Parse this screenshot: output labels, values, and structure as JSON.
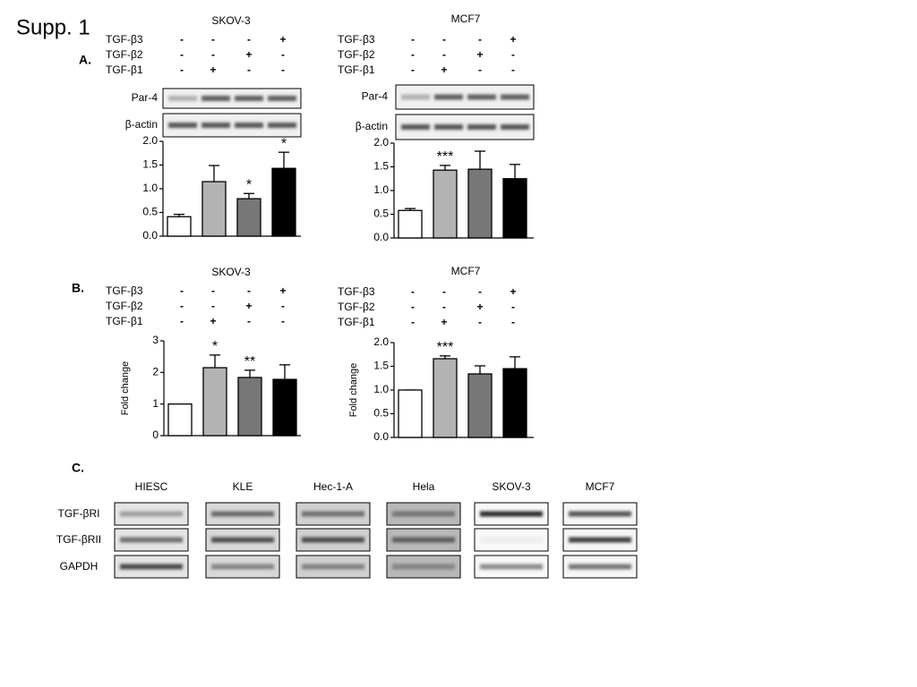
{
  "title": "Supp. 1",
  "panel_labels": [
    "A.",
    "B.",
    "C."
  ],
  "chart_data": [
    {
      "type": "bar",
      "title": "SKOV-3",
      "treatments": [
        {
          "label": "TGF-β3",
          "signs": [
            "-",
            "-",
            "-",
            "+"
          ]
        },
        {
          "label": "TGF-β2",
          "signs": [
            "-",
            "-",
            "+",
            "-"
          ]
        },
        {
          "label": "TGF-β1",
          "signs": [
            "-",
            "+",
            "-",
            "-"
          ]
        }
      ],
      "blots": [
        "Par-4",
        "β-actin"
      ],
      "categories": [
        null,
        null,
        null,
        null
      ],
      "values": [
        0.41,
        1.15,
        0.79,
        1.43
      ],
      "errors": [
        0.05,
        0.34,
        0.11,
        0.34
      ],
      "annotations": [
        null,
        null,
        "*",
        "*"
      ],
      "colors": [
        "#ffffff",
        "#b3b3b3",
        "#777777",
        "#000000"
      ],
      "ylim": [
        0,
        2
      ],
      "yticks": [
        {
          "value": 0,
          "label": "0.0"
        },
        0.5,
        {
          "value": 1,
          "label": "1.0"
        },
        1.5,
        {
          "value": 2,
          "label": "2.0"
        }
      ]
    },
    {
      "type": "bar",
      "title": "MCF7",
      "treatments": [
        {
          "label": "TGF-β3",
          "signs": [
            "-",
            "-",
            "-",
            "+"
          ]
        },
        {
          "label": "TGF-β2",
          "signs": [
            "-",
            "-",
            "+",
            "-"
          ]
        },
        {
          "label": "TGF-β1",
          "signs": [
            "-",
            "+",
            "-",
            "-"
          ]
        }
      ],
      "blots": [
        "Par-4",
        "β-actin"
      ],
      "categories": [
        null,
        null,
        null,
        null
      ],
      "values": [
        0.58,
        1.43,
        1.45,
        1.25
      ],
      "errors": [
        0.04,
        0.1,
        0.38,
        0.3
      ],
      "annotations": [
        null,
        "***",
        null,
        null
      ],
      "colors": [
        "#ffffff",
        "#b3b3b3",
        "#777777",
        "#000000"
      ],
      "ylim": [
        0,
        2
      ],
      "yticks": [
        {
          "value": 0,
          "label": "0.0"
        },
        0.5,
        {
          "value": 1,
          "label": "1.0"
        },
        1.5,
        {
          "value": 2,
          "label": "2.0"
        }
      ]
    },
    {
      "type": "bar",
      "title": "SKOV-3",
      "ylabel": "Fold change",
      "treatments": [
        {
          "label": "TGF-β3",
          "signs": [
            "-",
            "-",
            "-",
            "+"
          ]
        },
        {
          "label": "TGF-β2",
          "signs": [
            "-",
            "-",
            "+",
            "-"
          ]
        },
        {
          "label": "TGF-β1",
          "signs": [
            "-",
            "+",
            "-",
            "-"
          ]
        }
      ],
      "categories": [
        null,
        null,
        null,
        null
      ],
      "values": [
        1,
        2.15,
        1.84,
        1.78
      ],
      "errors": [
        0,
        0.4,
        0.23,
        0.46
      ],
      "annotations": [
        null,
        "*",
        "**",
        null
      ],
      "colors": [
        "#ffffff",
        "#b3b3b3",
        "#777777",
        "#000000"
      ],
      "ylim": [
        0,
        3
      ],
      "yticks": [
        0,
        1,
        2,
        3
      ]
    },
    {
      "type": "bar",
      "title": "MCF7",
      "ylabel": "Fold change",
      "treatments": [
        {
          "label": "TGF-β3",
          "signs": [
            "-",
            "-",
            "-",
            "+"
          ]
        },
        {
          "label": "TGF-β2",
          "signs": [
            "-",
            "-",
            "+",
            "-"
          ]
        },
        {
          "label": "TGF-β1",
          "signs": [
            "-",
            "+",
            "-",
            "-"
          ]
        }
      ],
      "categories": [
        null,
        null,
        null,
        null
      ],
      "values": [
        1,
        1.66,
        1.34,
        1.45
      ],
      "errors": [
        0,
        0.06,
        0.17,
        0.25
      ],
      "annotations": [
        null,
        "***",
        null,
        null
      ],
      "colors": [
        "#ffffff",
        "#b3b3b3",
        "#777777",
        "#000000"
      ],
      "ylim": [
        0,
        2
      ],
      "yticks": [
        {
          "value": 0,
          "label": "0.0"
        },
        0.5,
        {
          "value": 1,
          "label": "1.0"
        },
        1.5,
        {
          "value": 2,
          "label": "2.0"
        }
      ]
    }
  ],
  "blot_panel": {
    "cell_lines": [
      "HIESC",
      "KLE",
      "Hec-1-A",
      "Hela",
      "SKOV-3",
      "MCF7"
    ],
    "proteins": [
      "TGF-βRI",
      "TGF-βRII",
      "GAPDH"
    ]
  }
}
